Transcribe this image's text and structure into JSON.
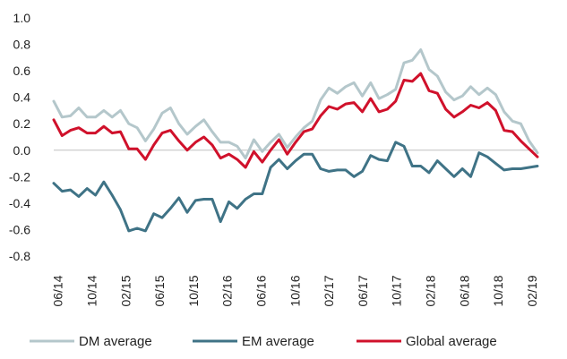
{
  "chart_data": {
    "type": "line",
    "title": "",
    "xlabel": "",
    "ylabel": "",
    "ylim": [
      -0.8,
      1.0
    ],
    "yticks": [
      "1.0",
      "0.8",
      "0.6",
      "0.4",
      "0.2",
      "0.0",
      "-0.2",
      "-0.4",
      "-0.6",
      "-0.8"
    ],
    "xtick_labels": [
      "06/14",
      "10/14",
      "02/15",
      "06/15",
      "10/15",
      "02/16",
      "06/16",
      "10/16",
      "02/17",
      "06/17",
      "10/17",
      "02/18",
      "06/18",
      "10/18",
      "02/19"
    ],
    "grid": false,
    "legend_position": "bottom",
    "series": [
      {
        "name": "DM average",
        "color": "#b4c7cb",
        "values": [
          0.37,
          0.25,
          0.26,
          0.32,
          0.25,
          0.25,
          0.3,
          0.25,
          0.3,
          0.2,
          0.17,
          0.07,
          0.16,
          0.28,
          0.32,
          0.2,
          0.12,
          0.18,
          0.23,
          0.14,
          0.06,
          0.06,
          0.03,
          -0.06,
          0.08,
          -0.01,
          0.06,
          0.12,
          0.02,
          0.1,
          0.17,
          0.22,
          0.38,
          0.47,
          0.43,
          0.48,
          0.51,
          0.41,
          0.51,
          0.39,
          0.42,
          0.46,
          0.66,
          0.68,
          0.76,
          0.61,
          0.56,
          0.44,
          0.38,
          0.41,
          0.48,
          0.42,
          0.47,
          0.42,
          0.29,
          0.22,
          0.2,
          0.07,
          -0.02
        ]
      },
      {
        "name": "EM average",
        "color": "#3f7386",
        "values": [
          -0.25,
          -0.31,
          -0.3,
          -0.35,
          -0.29,
          -0.34,
          -0.24,
          -0.34,
          -0.45,
          -0.61,
          -0.59,
          -0.61,
          -0.48,
          -0.51,
          -0.44,
          -0.36,
          -0.47,
          -0.38,
          -0.37,
          -0.37,
          -0.54,
          -0.39,
          -0.44,
          -0.37,
          -0.33,
          -0.33,
          -0.13,
          -0.07,
          -0.14,
          -0.08,
          -0.03,
          -0.03,
          -0.14,
          -0.16,
          -0.15,
          -0.15,
          -0.2,
          -0.16,
          -0.04,
          -0.07,
          -0.08,
          0.06,
          0.03,
          -0.12,
          -0.12,
          -0.17,
          -0.08,
          -0.14,
          -0.2,
          -0.14,
          -0.2,
          -0.02,
          -0.05,
          -0.1,
          -0.15,
          -0.14,
          -0.14,
          -0.13,
          -0.12
        ]
      },
      {
        "name": "Global average",
        "color": "#d0112b",
        "values": [
          0.23,
          0.11,
          0.15,
          0.17,
          0.13,
          0.13,
          0.18,
          0.13,
          0.14,
          0.01,
          0.01,
          -0.07,
          0.04,
          0.13,
          0.15,
          0.07,
          0.0,
          0.06,
          0.1,
          0.04,
          -0.06,
          -0.03,
          -0.07,
          -0.13,
          -0.01,
          -0.09,
          0.0,
          0.08,
          -0.03,
          0.06,
          0.14,
          0.16,
          0.26,
          0.33,
          0.31,
          0.35,
          0.36,
          0.29,
          0.39,
          0.29,
          0.31,
          0.37,
          0.53,
          0.52,
          0.58,
          0.45,
          0.43,
          0.31,
          0.25,
          0.29,
          0.34,
          0.32,
          0.36,
          0.3,
          0.15,
          0.14,
          0.07,
          0.01,
          -0.05
        ]
      }
    ]
  }
}
